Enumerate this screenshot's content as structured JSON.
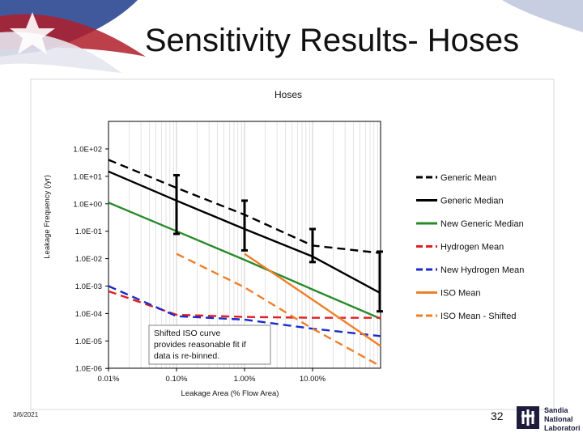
{
  "slide": {
    "title": "Sensitivity Results- Hoses",
    "date": "3/6/2021",
    "page_number": "32",
    "logo_text": [
      "Sandia",
      "National",
      "Laboratories"
    ]
  },
  "chart_data": {
    "type": "line",
    "title": "Hoses",
    "xlabel": "Leakage Area (% Flow Area)",
    "ylabel": "Leakage Frequency (/yr)",
    "x_scale": "log",
    "y_scale": "log",
    "xlim": [
      0.01,
      100
    ],
    "ylim": [
      1e-06,
      100
    ],
    "x_tick_values": [
      0.01,
      0.1,
      1,
      10
    ],
    "x_tick_labels": [
      "0.01%",
      "0.10%",
      "1.00%",
      "10.00%"
    ],
    "y_tick_values": [
      100,
      10,
      1,
      0.1,
      0.01,
      0.001,
      0.0001,
      1e-05,
      1e-06
    ],
    "y_tick_labels": [
      "1.0E+02",
      "1.0E+01",
      "1.0E+00",
      "1.0E-01",
      "1.0E-02",
      "1.0E-03",
      "1.0E-04",
      "1.0E-05",
      "1.0E-06"
    ],
    "legend_position": "right",
    "series": [
      {
        "name": "Generic Mean",
        "color": "#000000",
        "dash": "dashed",
        "x": [
          0.01,
          0.1,
          1,
          10,
          100
        ],
        "y": [
          40,
          3.8,
          0.4,
          0.03,
          0.016
        ]
      },
      {
        "name": "Generic Median",
        "color": "#000000",
        "dash": "solid",
        "x": [
          0.01,
          0.1,
          1,
          10,
          100
        ],
        "y": [
          15,
          1.3,
          0.12,
          0.012,
          0.00055
        ]
      },
      {
        "name": "New Generic Median",
        "color": "#2a8a2a",
        "dash": "solid",
        "x": [
          0.01,
          0.1,
          1,
          10,
          100
        ],
        "y": [
          1.1,
          0.1,
          0.009,
          0.00075,
          6.5e-05
        ]
      },
      {
        "name": "Hydrogen Mean",
        "color": "#e02020",
        "dash": "dashed",
        "x": [
          0.01,
          0.1,
          1,
          10,
          100
        ],
        "y": [
          0.00065,
          9e-05,
          7.5e-05,
          7e-05,
          7e-05
        ]
      },
      {
        "name": "New Hydrogen Mean",
        "color": "#1a2acc",
        "dash": "dashed",
        "x": [
          0.01,
          0.1,
          1,
          10,
          100
        ],
        "y": [
          0.001,
          8e-05,
          6e-05,
          2.8e-05,
          1.5e-05
        ]
      },
      {
        "name": "ISO Mean",
        "color": "#ee7f2a",
        "dash": "solid",
        "x": [
          1,
          10,
          100
        ],
        "y": [
          0.015,
          0.00032,
          6.5e-06
        ]
      },
      {
        "name": "ISO Mean - Shifted",
        "color": "#ee7f2a",
        "dash": "dashed",
        "x": [
          0.1,
          1,
          10,
          100
        ],
        "y": [
          0.015,
          0.0009,
          2.8e-05,
          1.2e-06
        ]
      }
    ],
    "error_bars": [
      {
        "x": 0.1,
        "low": 0.08,
        "high": 11,
        "color": "#000000"
      },
      {
        "x": 1,
        "low": 0.02,
        "high": 1.3,
        "color": "#000000"
      },
      {
        "x": 10,
        "low": 0.0075,
        "high": 0.12,
        "color": "#000000"
      },
      {
        "x": 100,
        "low": 0.00012,
        "high": 0.018,
        "color": "#000000"
      }
    ],
    "annotation": {
      "lines": [
        "Shifted ISO curve",
        "provides reasonable fit if",
        "data is re-binned."
      ]
    }
  }
}
